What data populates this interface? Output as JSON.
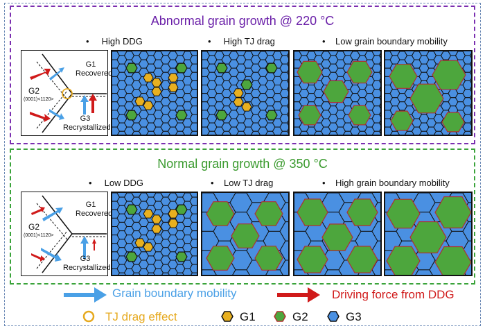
{
  "panels": {
    "top": {
      "title": "Abnormal grain growth @ 220 °C",
      "labels": [
        "High DDG",
        "High TJ drag",
        "Low grain boundary mobility"
      ]
    },
    "bottom": {
      "title": "Normal grain growth @ 350 °C",
      "labels": [
        "Low DDG",
        "Low TJ drag",
        "High grain boundary mobility"
      ]
    }
  },
  "schematic": {
    "g1": "G1",
    "g1_sub": "Recovered",
    "g2": "G2",
    "g2_sub": "(0001)<1120>",
    "g3": "G3",
    "g3_sub": "Recrystallized"
  },
  "legend": {
    "mobility": "Grain boundary mobility",
    "driving_force": "Driving force from DDG",
    "tj_drag": "TJ drag effect",
    "g1": "G1",
    "g2": "G2",
    "g3": "G3"
  },
  "colors": {
    "g1": "#e8b020",
    "g2": "#4da63d",
    "g3": "#4a90e2",
    "mobility_arrow": "#4aa0e6",
    "driving_arrow": "#d01a1a",
    "top_border": "#7b2fb0",
    "bottom_border": "#3aa33a"
  }
}
